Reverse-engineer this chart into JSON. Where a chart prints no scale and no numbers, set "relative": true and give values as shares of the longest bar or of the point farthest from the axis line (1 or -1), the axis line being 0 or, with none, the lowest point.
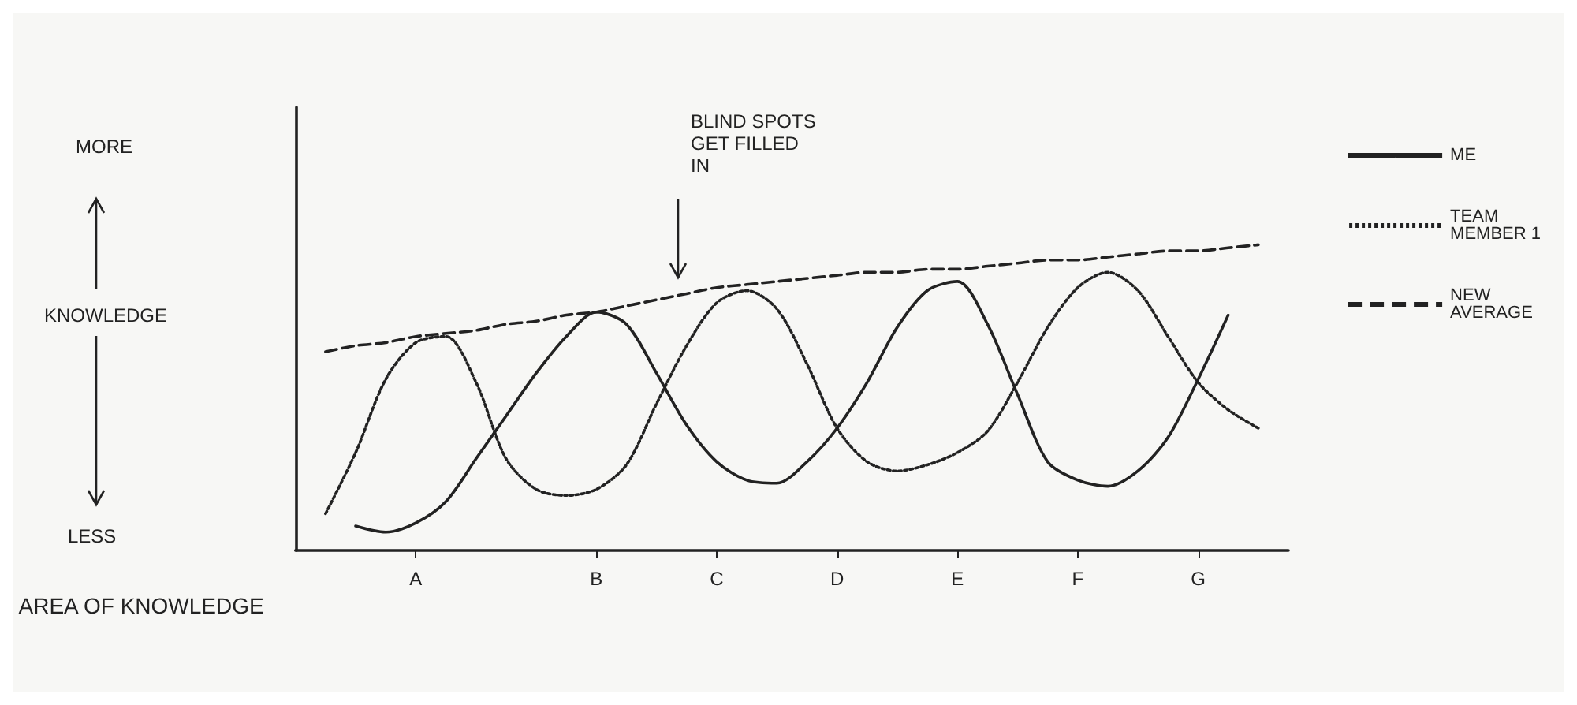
{
  "chart_data": {
    "type": "line",
    "relative": true,
    "xlabel": "AREA OF KNOWLEDGE",
    "categories": [
      null,
      null,
      null,
      null,
      "A",
      null,
      null,
      null,
      null,
      null,
      "B",
      null,
      null,
      null,
      "C",
      null,
      null,
      null,
      "D",
      null,
      null,
      null,
      "E",
      null,
      null,
      null,
      "F",
      null,
      null,
      null,
      "G",
      null,
      null,
      null
    ],
    "legend": "right",
    "grid": false,
    "marker": "none",
    "annotations": [
      "BLIND SPOTS\nGET FILLED\nIN",
      "MORE",
      "KNOWLEDGE",
      "LESS"
    ],
    "series": [
      {
        "name": "ME",
        "color": "#222222",
        "line_style": "solid",
        "values": [
          null,
          null,
          0.08,
          0.06,
          0.09,
          0.16,
          0.3,
          0.44,
          0.58,
          0.7,
          0.78,
          0.74,
          0.58,
          0.41,
          0.29,
          0.23,
          0.22,
          0.29,
          0.4,
          0.55,
          0.73,
          0.85,
          0.88,
          0.74,
          0.51,
          0.29,
          0.23,
          0.21,
          0.26,
          0.37,
          0.56,
          0.77,
          null,
          null
        ]
      },
      {
        "name": "TEAM MEMBER 1",
        "color": "#222222",
        "line_style": "dotted",
        "values": [
          null,
          0.12,
          0.32,
          0.56,
          0.68,
          0.7,
          0.55,
          0.3,
          0.2,
          0.18,
          0.2,
          0.28,
          0.48,
          0.67,
          0.81,
          0.85,
          0.79,
          0.61,
          0.4,
          0.29,
          0.26,
          0.28,
          0.32,
          0.39,
          0.55,
          0.73,
          0.86,
          0.91,
          0.85,
          0.7,
          0.55,
          0.46,
          0.4,
          null
        ]
      },
      {
        "name": "NEW AVERAGE",
        "color": "#222222",
        "line_style": "dashed",
        "values": [
          null,
          0.65,
          0.67,
          0.68,
          0.7,
          0.71,
          0.72,
          0.74,
          0.75,
          0.77,
          0.78,
          0.8,
          0.82,
          0.84,
          0.86,
          0.87,
          0.88,
          0.89,
          0.9,
          0.91,
          0.91,
          0.92,
          0.92,
          0.93,
          0.94,
          0.95,
          0.95,
          0.96,
          0.97,
          0.98,
          0.98,
          0.99,
          1.0,
          null
        ]
      }
    ]
  }
}
